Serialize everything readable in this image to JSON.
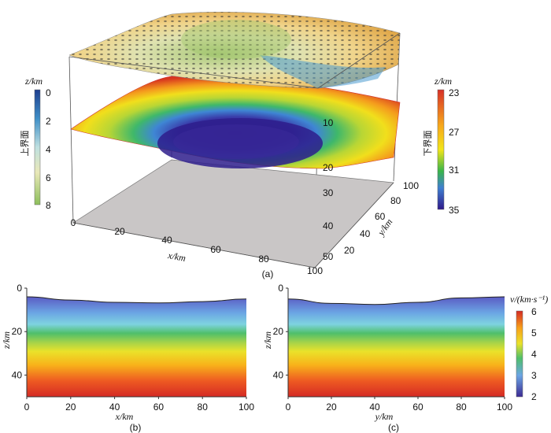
{
  "panel_3d": {
    "label": "(a)",
    "x_axis": {
      "label": "x/km",
      "ticks": [
        "0",
        "20",
        "40",
        "60",
        "80",
        "100"
      ]
    },
    "y_axis": {
      "label": "y/km",
      "ticks": [
        "20",
        "40",
        "60",
        "80",
        "100"
      ]
    },
    "z_axis": {
      "ticks": [
        "10",
        "20",
        "30",
        "40",
        "50"
      ]
    },
    "upper_colorbar": {
      "title": "z/km",
      "name": "上界面",
      "ticks": [
        "0",
        "2",
        "4",
        "6",
        "8"
      ],
      "colors": [
        "#1e3f8f",
        "#3f8fc7",
        "#a9d3da",
        "#e6e6b8",
        "#8cbf5a"
      ]
    },
    "lower_colorbar": {
      "title": "z/km",
      "name": "下界面",
      "ticks": [
        "23",
        "27",
        "31",
        "35"
      ],
      "colors": [
        "#d73027",
        "#f7a81b",
        "#f2e51a",
        "#39b54a",
        "#2f1a8a"
      ]
    }
  },
  "panel_b": {
    "label": "(b)",
    "xlabel": "x/km",
    "ylabel": "z/km",
    "x_ticks": [
      "0",
      "20",
      "40",
      "60",
      "80",
      "100"
    ],
    "y_ticks": [
      "0",
      "20",
      "40"
    ]
  },
  "panel_c": {
    "label": "(c)",
    "xlabel": "y/km",
    "ylabel": "z/km",
    "x_ticks": [
      "0",
      "20",
      "40",
      "60",
      "80",
      "100"
    ],
    "y_ticks": [
      "0",
      "20",
      "40"
    ]
  },
  "velocity_colorbar": {
    "title": "v/(km·s⁻¹)",
    "ticks": [
      "6",
      "5",
      "4",
      "3",
      "2"
    ]
  },
  "chart_data": [
    {
      "type": "heatmap",
      "title": "",
      "xlabel": "x/km",
      "ylabel": "z/km",
      "xlim": [
        0,
        100
      ],
      "ylim": [
        0,
        50
      ],
      "top_boundary": {
        "x": [
          0,
          20,
          40,
          60,
          80,
          100
        ],
        "z": [
          4,
          5.5,
          6.5,
          6.8,
          6.2,
          5
        ]
      },
      "velocity_profile": {
        "z": [
          0,
          10,
          20,
          25,
          30,
          40,
          50
        ],
        "v": [
          2,
          2.8,
          3.6,
          4,
          4.4,
          5.2,
          6
        ]
      },
      "colorbar": {
        "label": "v/(km·s⁻¹)",
        "range": [
          2,
          6
        ]
      }
    },
    {
      "type": "heatmap",
      "title": "",
      "xlabel": "y/km",
      "ylabel": "z/km",
      "xlim": [
        0,
        100
      ],
      "ylim": [
        0,
        50
      ],
      "top_boundary": {
        "x": [
          0,
          20,
          40,
          60,
          80,
          100
        ],
        "z": [
          5,
          7,
          7.5,
          6.5,
          4.5,
          4
        ]
      },
      "velocity_profile": {
        "z": [
          0,
          10,
          20,
          25,
          30,
          40,
          50
        ],
        "v": [
          2,
          2.8,
          3.6,
          4,
          4.4,
          5.2,
          6
        ]
      },
      "colorbar": {
        "label": "v/(km·s⁻¹)",
        "range": [
          2,
          6
        ]
      }
    }
  ]
}
